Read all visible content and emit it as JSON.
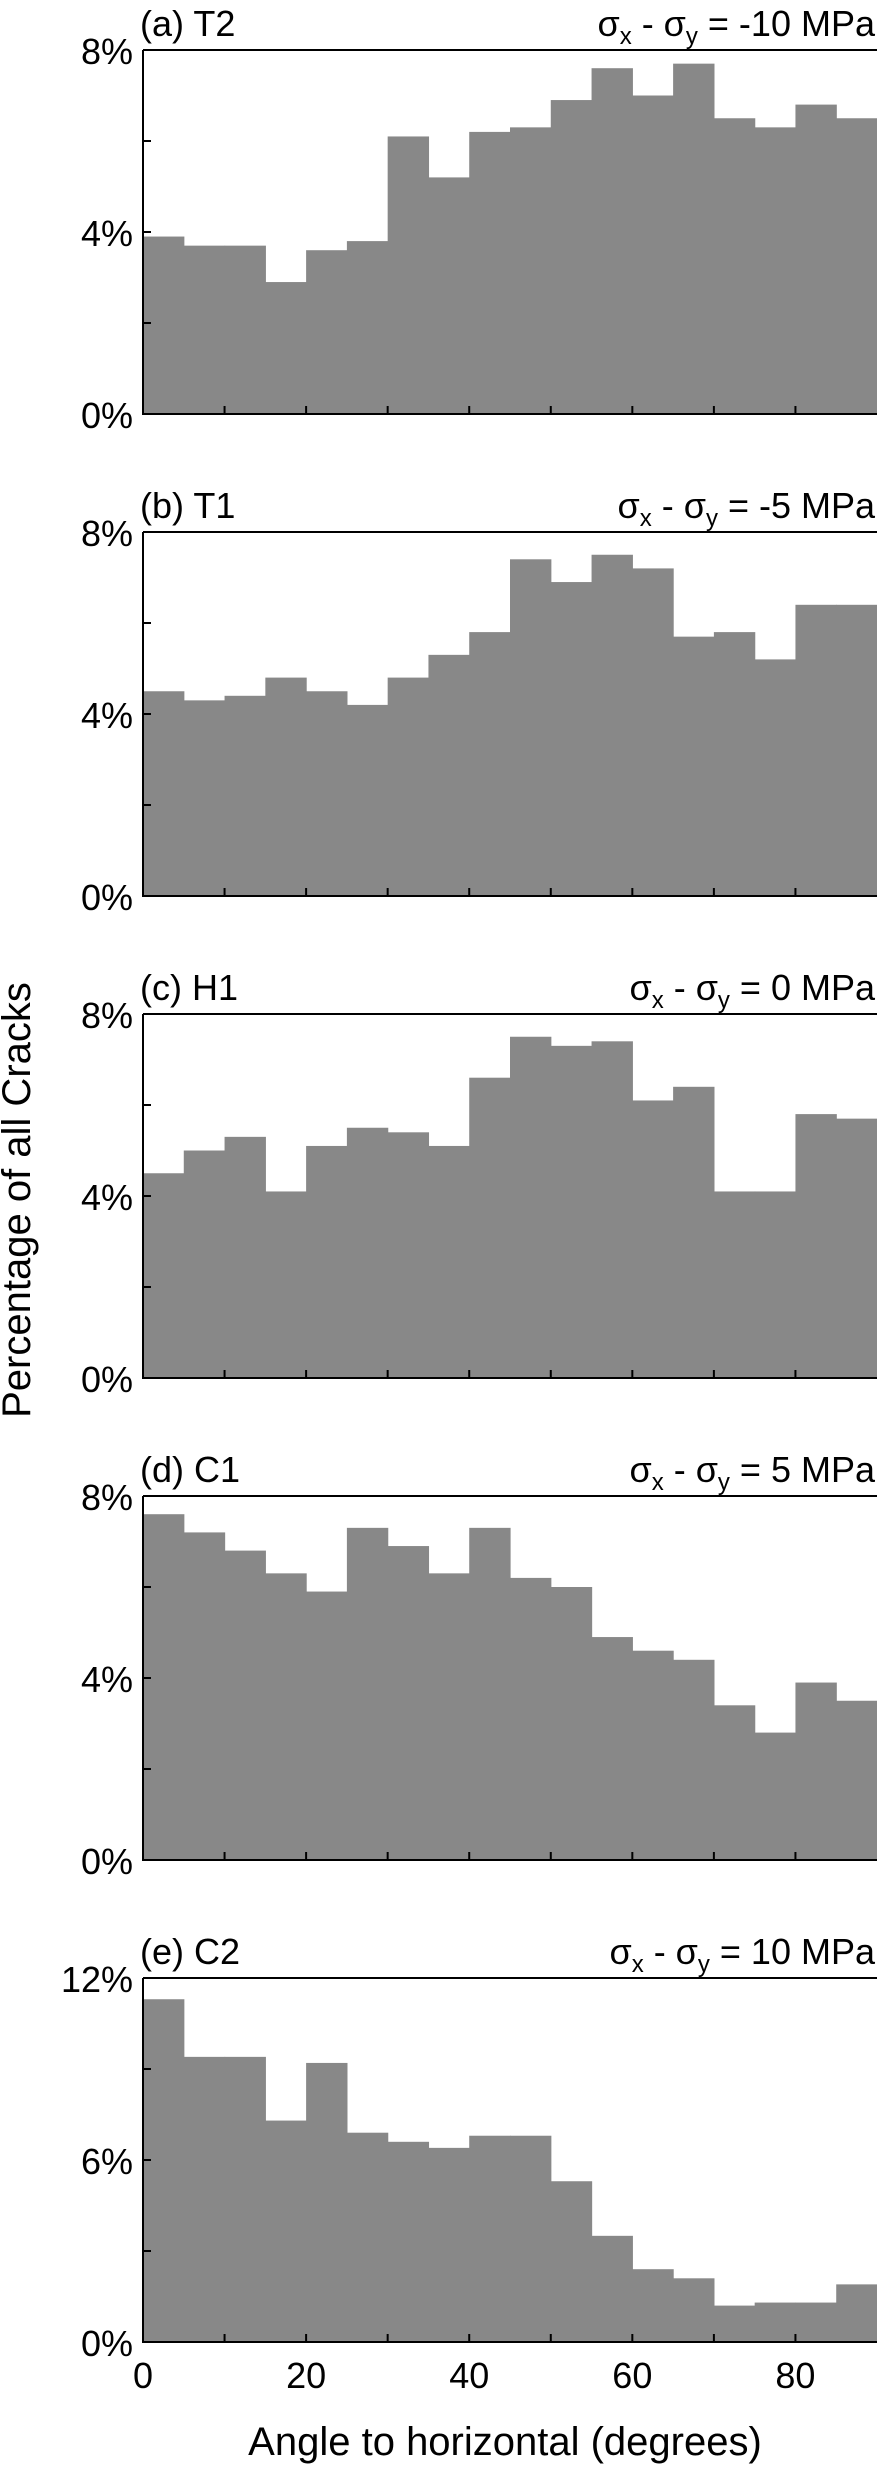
{
  "figure": {
    "ylabel": "Percentage of all Cracks",
    "xlabel": "Angle to horizontal (degrees)",
    "x_ticks": [
      "0",
      "20",
      "40",
      "60",
      "80"
    ]
  },
  "colors": {
    "bar": "#888888",
    "axis": "#000000",
    "background": "#ffffff"
  },
  "chart_data": [
    {
      "type": "bar",
      "panel": "(a) T2",
      "condition": {
        "prefix": "σ",
        "sub1": "x",
        "mid": " - σ",
        "sub2": "y",
        "suffix": " = -10 MPa"
      },
      "bin_width": 5,
      "x": [
        0,
        5,
        10,
        15,
        20,
        25,
        30,
        35,
        40,
        45,
        50,
        55,
        60,
        65,
        70,
        75,
        80,
        85
      ],
      "values": [
        3.9,
        3.7,
        3.7,
        2.9,
        3.6,
        3.8,
        6.1,
        5.2,
        6.2,
        6.3,
        6.9,
        7.6,
        7.0,
        7.7,
        6.5,
        6.3,
        6.8,
        6.5
      ],
      "xlim": [
        0,
        90
      ],
      "ylim": [
        0,
        8
      ],
      "y_ticks": [
        0,
        4,
        8
      ],
      "y_tick_labels": [
        "0%",
        "4%",
        "8%"
      ]
    },
    {
      "type": "bar",
      "panel": "(b) T1",
      "condition": {
        "prefix": "σ",
        "sub1": "x",
        "mid": " - σ",
        "sub2": "y",
        "suffix": " = -5 MPa"
      },
      "bin_width": 5,
      "x": [
        0,
        5,
        10,
        15,
        20,
        25,
        30,
        35,
        40,
        45,
        50,
        55,
        60,
        65,
        70,
        75,
        80,
        85
      ],
      "values": [
        4.5,
        4.3,
        4.4,
        4.8,
        4.5,
        4.2,
        4.8,
        5.3,
        5.8,
        7.4,
        6.9,
        7.5,
        7.2,
        5.7,
        5.8,
        5.2,
        6.4,
        6.4
      ],
      "xlim": [
        0,
        90
      ],
      "ylim": [
        0,
        8
      ],
      "y_ticks": [
        0,
        4,
        8
      ],
      "y_tick_labels": [
        "0%",
        "4%",
        "8%"
      ]
    },
    {
      "type": "bar",
      "panel": "(c) H1",
      "condition": {
        "prefix": "σ",
        "sub1": "x",
        "mid": " - σ",
        "sub2": "y",
        "suffix": " = 0 MPa"
      },
      "bin_width": 5,
      "x": [
        0,
        5,
        10,
        15,
        20,
        25,
        30,
        35,
        40,
        45,
        50,
        55,
        60,
        65,
        70,
        75,
        80,
        85
      ],
      "values": [
        4.5,
        5.0,
        5.3,
        4.1,
        5.1,
        5.5,
        5.4,
        5.1,
        6.6,
        7.5,
        7.3,
        7.4,
        6.1,
        6.4,
        4.1,
        4.1,
        5.8,
        5.7
      ],
      "xlim": [
        0,
        90
      ],
      "ylim": [
        0,
        8
      ],
      "y_ticks": [
        0,
        4,
        8
      ],
      "y_tick_labels": [
        "0%",
        "4%",
        "8%"
      ]
    },
    {
      "type": "bar",
      "panel": "(d) C1",
      "condition": {
        "prefix": "σ",
        "sub1": "x",
        "mid": " - σ",
        "sub2": "y",
        "suffix": " = 5 MPa"
      },
      "bin_width": 5,
      "x": [
        0,
        5,
        10,
        15,
        20,
        25,
        30,
        35,
        40,
        45,
        50,
        55,
        60,
        65,
        70,
        75,
        80,
        85
      ],
      "values": [
        7.6,
        7.2,
        6.8,
        6.3,
        5.9,
        7.3,
        6.9,
        6.3,
        7.3,
        6.2,
        6.0,
        4.9,
        4.6,
        4.4,
        3.4,
        2.8,
        3.9,
        3.5
      ],
      "xlim": [
        0,
        90
      ],
      "ylim": [
        0,
        8
      ],
      "y_ticks": [
        0,
        4,
        8
      ],
      "y_tick_labels": [
        "0%",
        "4%",
        "8%"
      ]
    },
    {
      "type": "bar",
      "panel": "(e) C2",
      "condition": {
        "prefix": "σ",
        "sub1": "x",
        "mid": " - σ",
        "sub2": "y",
        "suffix": " = 10 MPa"
      },
      "bin_width": 5,
      "x": [
        0,
        5,
        10,
        15,
        20,
        25,
        30,
        35,
        40,
        45,
        50,
        55,
        60,
        65,
        70,
        75,
        80,
        85
      ],
      "values": [
        11.3,
        9.4,
        9.4,
        7.3,
        9.2,
        6.9,
        6.6,
        6.4,
        6.8,
        6.8,
        5.3,
        3.5,
        2.4,
        2.1,
        1.2,
        1.3,
        1.3,
        1.9
      ],
      "xlim": [
        0,
        90
      ],
      "ylim": [
        0,
        12
      ],
      "y_ticks": [
        0,
        6,
        12
      ],
      "y_tick_labels": [
        "0%",
        "6%",
        "12%"
      ]
    }
  ]
}
